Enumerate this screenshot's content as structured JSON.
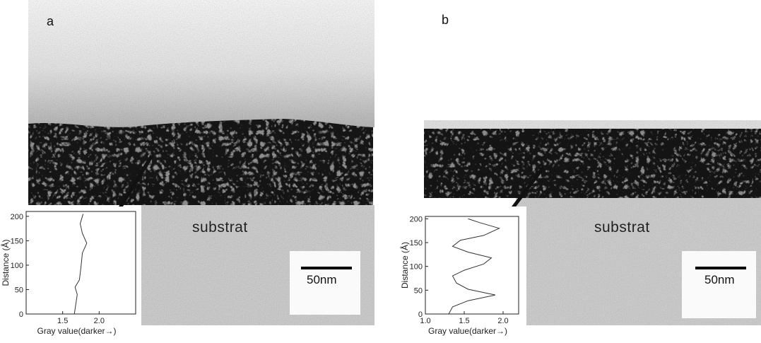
{
  "panels": [
    {
      "letter": "a",
      "substrate_label": "substrat",
      "scale": {
        "label": "50nm"
      },
      "inset": {
        "xlabel": "Gray value(darker→)",
        "ylabel": "Distance (Å)",
        "xticks": [
          "1.5",
          "2.0"
        ],
        "yticks": [
          "0",
          "50",
          "100",
          "150",
          "200"
        ],
        "xlim": [
          1.0,
          2.5
        ],
        "ylim": [
          0,
          210
        ],
        "profile": [
          [
            1.66,
            0
          ],
          [
            1.68,
            20
          ],
          [
            1.7,
            40
          ],
          [
            1.67,
            55
          ],
          [
            1.73,
            70
          ],
          [
            1.75,
            95
          ],
          [
            1.77,
            125
          ],
          [
            1.83,
            145
          ],
          [
            1.77,
            165
          ],
          [
            1.74,
            185
          ],
          [
            1.78,
            205
          ]
        ]
      }
    },
    {
      "letter": "b",
      "substrate_label": "substrat",
      "scale": {
        "label": "50nm"
      },
      "inset": {
        "xlabel": "Gray value(darker→)",
        "ylabel": "Distance (Å)",
        "xticks": [
          "1.0",
          "1.5",
          "2.0"
        ],
        "yticks": [
          "0",
          "50",
          "100",
          "150",
          "200"
        ],
        "xlim": [
          1.0,
          2.2
        ],
        "ylim": [
          0,
          205
        ],
        "profile": [
          [
            1.3,
            0
          ],
          [
            1.35,
            15
          ],
          [
            1.55,
            28
          ],
          [
            1.9,
            40
          ],
          [
            1.55,
            52
          ],
          [
            1.4,
            65
          ],
          [
            1.35,
            80
          ],
          [
            1.5,
            92
          ],
          [
            1.75,
            105
          ],
          [
            1.85,
            118
          ],
          [
            1.55,
            130
          ],
          [
            1.35,
            142
          ],
          [
            1.45,
            155
          ],
          [
            1.75,
            165
          ],
          [
            1.95,
            180
          ],
          [
            1.7,
            192
          ],
          [
            1.55,
            200
          ]
        ]
      }
    }
  ]
}
